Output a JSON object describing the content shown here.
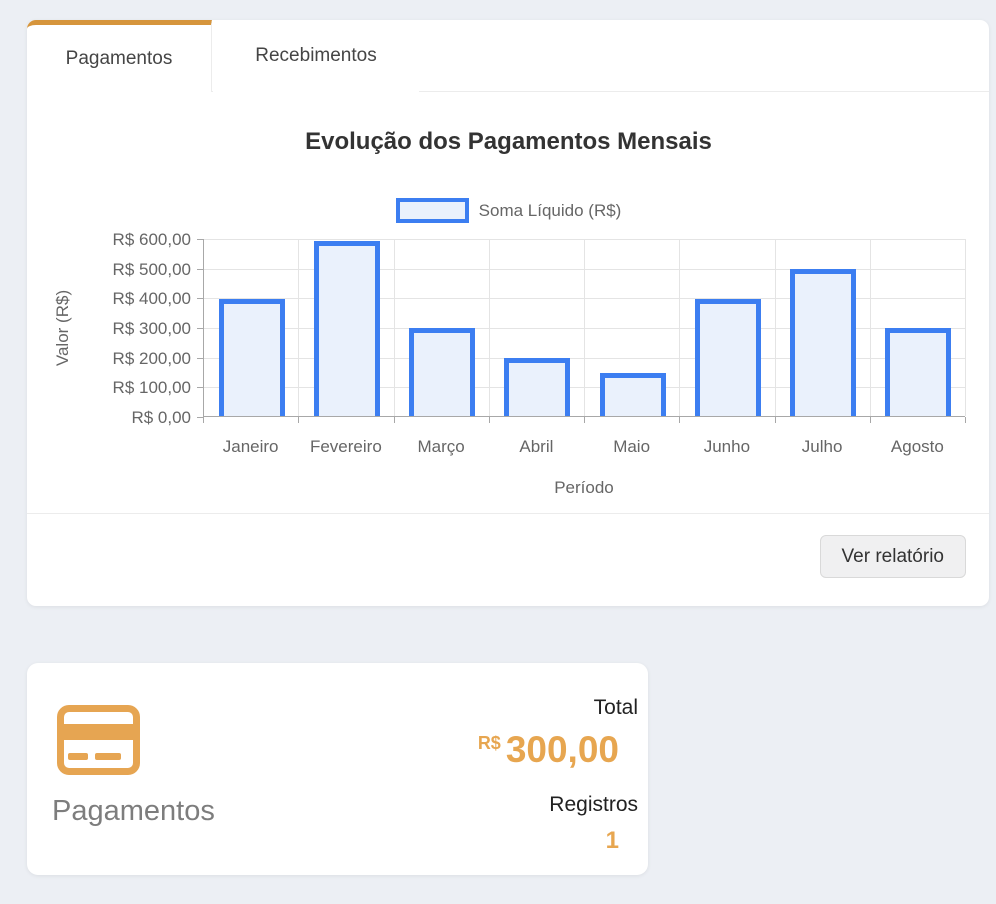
{
  "tabs": [
    {
      "label": "Pagamentos",
      "active": true
    },
    {
      "label": "Recebimentos",
      "active": false
    }
  ],
  "chart_data": {
    "type": "bar",
    "title": "Evolução dos Pagamentos Mensais",
    "legend": "Soma Líquido (R$)",
    "legend_position": "top",
    "xlabel": "Período",
    "ylabel": "Valor (R$)",
    "categories": [
      "Janeiro",
      "Fevereiro",
      "Março",
      "Abril",
      "Maio",
      "Junho",
      "Julho",
      "Agosto"
    ],
    "values": [
      395,
      590,
      295,
      195,
      145,
      395,
      495,
      295
    ],
    "ylim": [
      0,
      600
    ],
    "ytick_step": 100,
    "ytick_labels": [
      "R$ 600,00",
      "R$ 500,00",
      "R$ 400,00",
      "R$ 300,00",
      "R$ 200,00",
      "R$ 100,00",
      "R$ 0,00"
    ],
    "grid": true,
    "bar_fill": "#eaf1fc",
    "bar_border": "#3c7ef1"
  },
  "footer": {
    "button_label": "Ver relatório"
  },
  "summary": {
    "label": "Pagamentos",
    "total_label": "Total",
    "currency": "R$",
    "total_value": "300,00",
    "registros_label": "Registros",
    "registros_value": "1"
  },
  "colors": {
    "page_bg": "#eceff4",
    "accent_orange": "#d6953c",
    "summary_orange": "#e7a650",
    "bar_border_blue": "#3c7ef1",
    "bar_fill_blue": "#eaf1fc"
  }
}
